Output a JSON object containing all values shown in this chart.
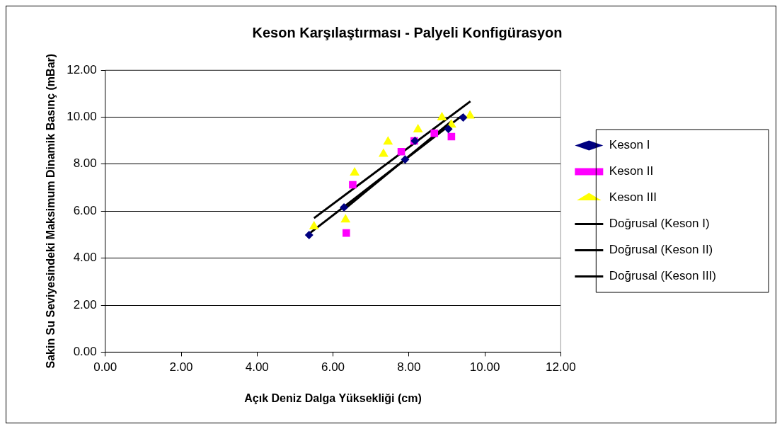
{
  "chart_data": {
    "type": "scatter",
    "title": "Keson Karşılaştırması - Palyeli Konfigürasyon",
    "xlabel": "Açık Deniz Dalga Yüksekliği (cm)",
    "ylabel": "Sakin Su Seviyesindeki Maksimum Dinamik Basınç (mBar)",
    "xlim": [
      0,
      12
    ],
    "ylim": [
      0,
      12
    ],
    "xticks": [
      {
        "value": 0,
        "label": "0.00"
      },
      {
        "value": 2,
        "label": "2.00"
      },
      {
        "value": 4,
        "label": "4.00"
      },
      {
        "value": 6,
        "label": "6.00"
      },
      {
        "value": 8,
        "label": "8.00"
      },
      {
        "value": 10,
        "label": "10.00"
      },
      {
        "value": 12,
        "label": "12.00"
      }
    ],
    "yticks": [
      {
        "value": 0,
        "label": "0.00"
      },
      {
        "value": 2,
        "label": "2.00"
      },
      {
        "value": 4,
        "label": "4.00"
      },
      {
        "value": 6,
        "label": "6.00"
      },
      {
        "value": 8,
        "label": "8.00"
      },
      {
        "value": 10,
        "label": "10.00"
      },
      {
        "value": 12,
        "label": "12.00"
      }
    ],
    "grid": "y",
    "legend": "right",
    "series": [
      {
        "name": "Keson I",
        "type": "scatter",
        "marker": "diamond",
        "color": "#000080",
        "x": [
          5.37,
          6.29,
          7.9,
          8.16,
          9.04,
          9.43
        ],
        "values": [
          4.98,
          6.16,
          8.2,
          8.99,
          9.49,
          9.98
        ]
      },
      {
        "name": "Keson II",
        "type": "scatter",
        "marker": "square",
        "color": "#ff00ff",
        "x": [
          6.52,
          6.35,
          7.8,
          8.14,
          8.67,
          9.12
        ],
        "values": [
          7.12,
          5.07,
          8.53,
          8.99,
          9.31,
          9.17
        ]
      },
      {
        "name": "Keson III",
        "type": "scatter",
        "marker": "triangle",
        "color": "#ffff00",
        "x": [
          5.5,
          6.33,
          6.57,
          7.33,
          7.45,
          8.24,
          8.87,
          9.12,
          9.61
        ],
        "values": [
          5.34,
          5.64,
          7.63,
          8.43,
          8.95,
          9.47,
          9.98,
          9.67,
          10.06
        ]
      },
      {
        "name": "Doğrusal (Keson I)",
        "type": "line",
        "marker": "none",
        "color": "#000000",
        "x": [
          5.37,
          9.43
        ],
        "values": [
          5.04,
          10.1
        ]
      },
      {
        "name": "Doğrusal (Keson II)",
        "type": "line",
        "marker": "none",
        "color": "#000000",
        "x": [
          6.35,
          9.12
        ],
        "values": [
          6.15,
          9.82
        ]
      },
      {
        "name": "Doğrusal (Keson III)",
        "type": "line",
        "marker": "none",
        "color": "#000000",
        "x": [
          5.5,
          9.62
        ],
        "values": [
          5.7,
          10.67
        ]
      }
    ]
  }
}
